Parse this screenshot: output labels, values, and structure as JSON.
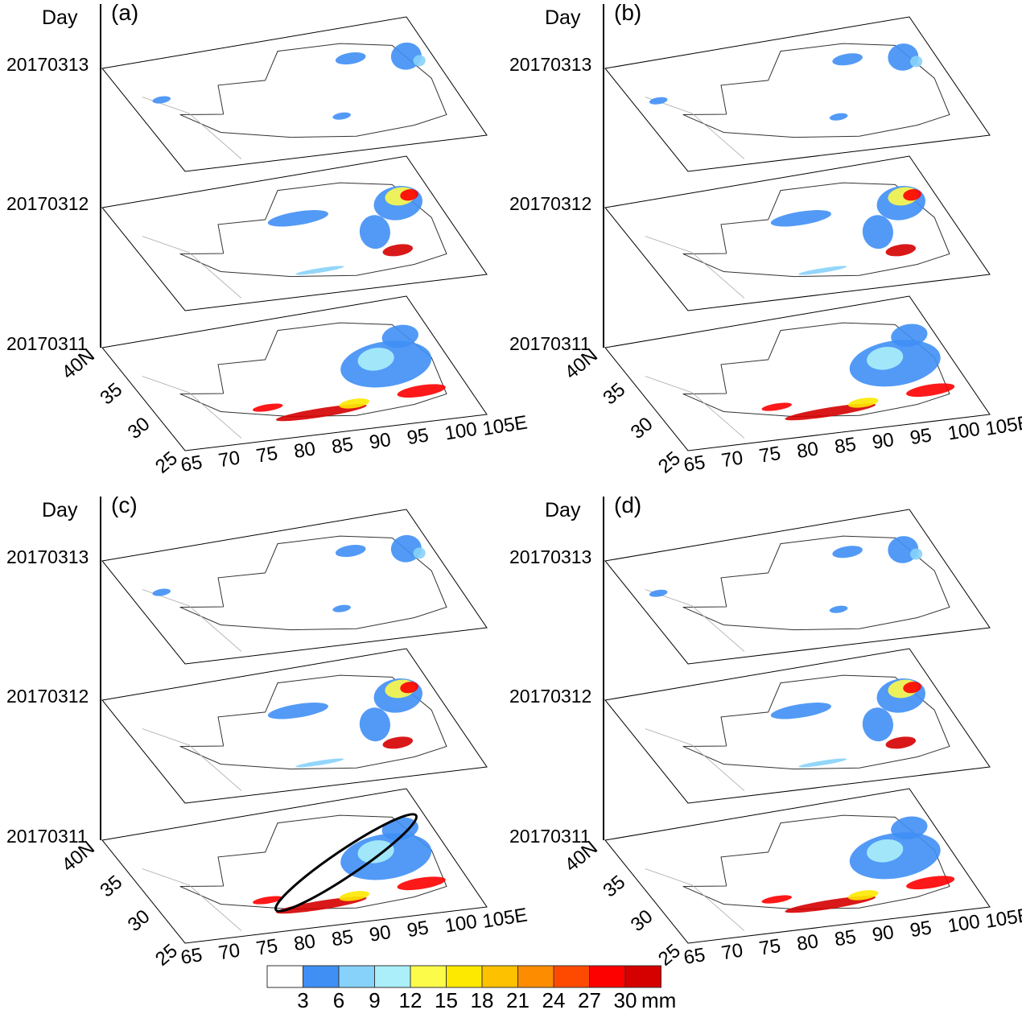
{
  "panels": [
    {
      "label": "(a)",
      "day_label": "Day",
      "dates": [
        "20170313",
        "20170312",
        "20170311"
      ]
    },
    {
      "label": "(b)",
      "day_label": "Day",
      "dates": [
        "20170313",
        "20170312",
        "20170311"
      ]
    },
    {
      "label": "(c)",
      "day_label": "Day",
      "dates": [
        "20170313",
        "20170312",
        "20170311"
      ]
    },
    {
      "label": "(d)",
      "day_label": "Day",
      "dates": [
        "20170313",
        "20170312",
        "20170311"
      ]
    }
  ],
  "lat_ticks": [
    "40N",
    "35",
    "30",
    "25"
  ],
  "lon_ticks": [
    "65",
    "70",
    "75",
    "80",
    "85",
    "90",
    "95",
    "100",
    "105E"
  ],
  "colorbar": {
    "ticks": [
      "3",
      "6",
      "9",
      "12",
      "15",
      "18",
      "21",
      "24",
      "27",
      "30"
    ],
    "unit": "mm",
    "colors": [
      "#ffffff",
      "#3f8ff5",
      "#87d2fa",
      "#aaeffa",
      "#fdfb4a",
      "#fde900",
      "#fdc100",
      "#fd8c00",
      "#fd4a00",
      "#fd0000",
      "#d50000"
    ]
  }
}
